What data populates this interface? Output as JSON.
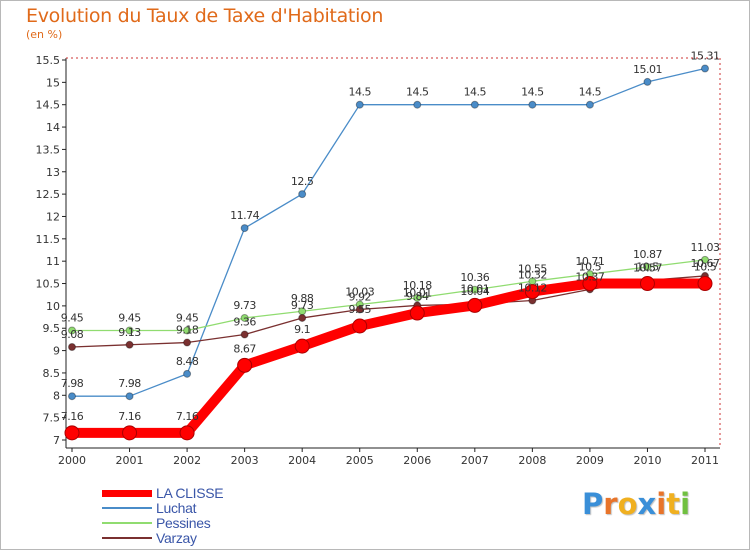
{
  "title": "Evolution du Taux de Taxe d'Habitation",
  "subtitle": "(en %)",
  "chart_data": {
    "type": "line",
    "title": "Evolution du Taux de Taxe d'Habitation",
    "subtitle": "(en %)",
    "xlabel": "",
    "ylabel": "(en %)",
    "x": [
      "2000",
      "2001",
      "2002",
      "2003",
      "2004",
      "2005",
      "2006",
      "2007",
      "2008",
      "2009",
      "2010",
      "2011"
    ],
    "ylim": [
      7,
      15.5
    ],
    "yticks": [
      "7",
      "7.5",
      "8",
      "8.5",
      "9",
      "9.5",
      "10",
      "10.5",
      "11",
      "11.5",
      "12",
      "12.5",
      "13",
      "13.5",
      "14",
      "14.5",
      "15",
      "15.5"
    ],
    "grid": false,
    "legend_position": "bottom-left",
    "series": [
      {
        "name": "LA CLISSE",
        "color": "#ff0000",
        "values": [
          7.16,
          7.16,
          7.16,
          8.67,
          9.1,
          9.55,
          9.84,
          10.01,
          10.32,
          10.5,
          10.5,
          10.5
        ],
        "labels": [
          "7.16",
          "7.16",
          "7.16",
          "8.67",
          "9.1",
          "9.55",
          "9.84",
          "10.01",
          "10.32",
          "10.5",
          "10.5",
          "10.5"
        ]
      },
      {
        "name": "Luchat",
        "color": "#4a8cc8",
        "values": [
          7.98,
          7.98,
          8.48,
          11.74,
          12.5,
          14.5,
          14.5,
          14.5,
          14.5,
          14.5,
          15.01,
          15.31
        ],
        "labels": [
          "7.98",
          "7.98",
          "8.48",
          "11.74",
          "12.5",
          "14.5",
          "14.5",
          "14.5",
          "14.5",
          "14.5",
          "15.01",
          "15.31"
        ]
      },
      {
        "name": "Pessines",
        "color": "#90dc70",
        "values": [
          9.45,
          9.45,
          9.45,
          9.73,
          9.88,
          10.03,
          10.18,
          10.36,
          10.55,
          10.71,
          10.87,
          11.03
        ],
        "labels": [
          "9.45",
          "9.45",
          "9.45",
          "9.73",
          "9.88",
          "10.03",
          "10.18",
          "10.36",
          "10.55",
          "10.71",
          "10.87",
          "11.03"
        ]
      },
      {
        "name": "Varzay",
        "color": "#7a3030",
        "values": [
          9.08,
          9.13,
          9.18,
          9.36,
          9.73,
          9.92,
          10.01,
          10.04,
          10.12,
          10.37,
          10.57,
          10.67
        ],
        "labels": [
          "9.08",
          "9.13",
          "9.18",
          "9.36",
          "9.73",
          "9.92",
          "10.01",
          "10.04",
          "10.12",
          "10.37",
          "10.57",
          "10.67"
        ]
      }
    ]
  },
  "legend": [
    {
      "label": "LA CLISSE",
      "color": "#ff0000"
    },
    {
      "label": "Luchat",
      "color": "#4a8cc8"
    },
    {
      "label": "Pessines",
      "color": "#90dc70"
    },
    {
      "label": "Varzay",
      "color": "#7a3030"
    }
  ],
  "logo": {
    "letters": [
      "P",
      "r",
      "o",
      "x",
      "i",
      "t",
      "i"
    ],
    "colors": [
      "#3a8fd8",
      "#e8742a",
      "#f0b020",
      "#3a8fd8",
      "#e8742a",
      "#f0b020",
      "#70c040"
    ]
  }
}
